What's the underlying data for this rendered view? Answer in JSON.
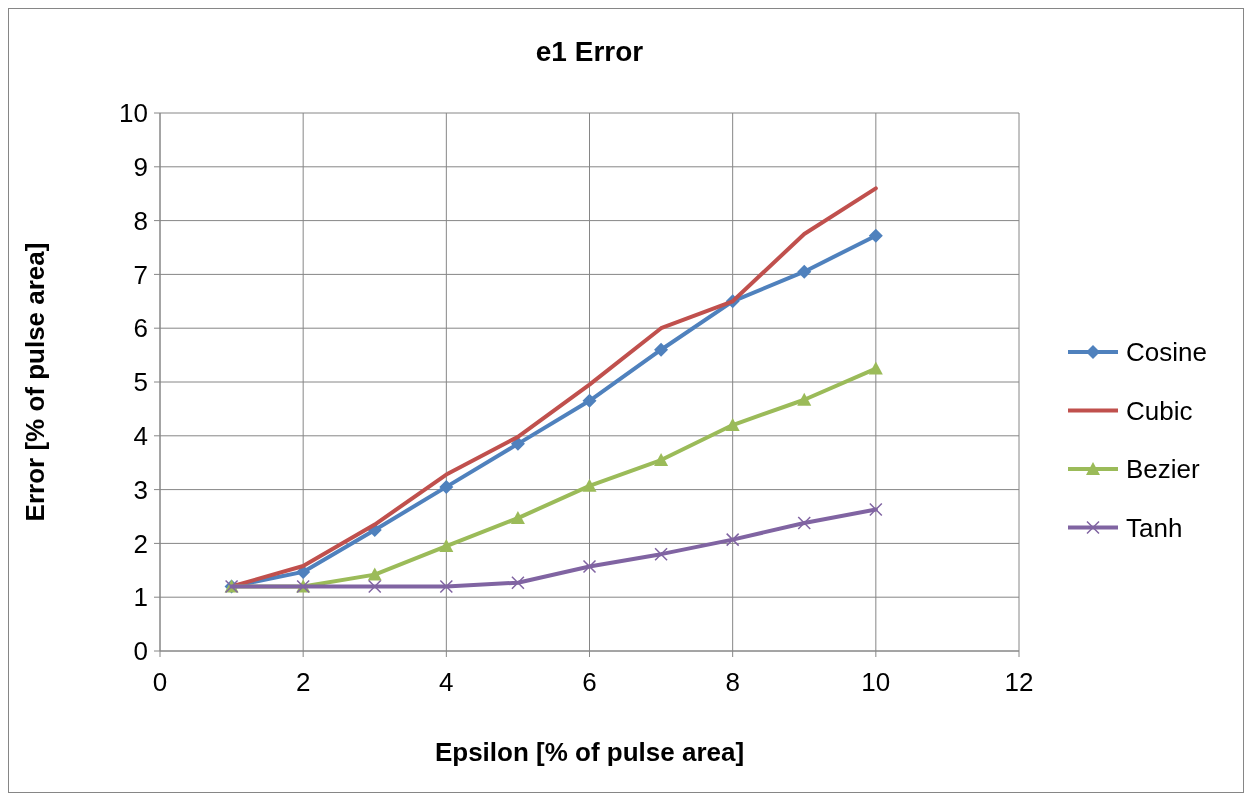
{
  "chart_data": {
    "type": "line",
    "title": "e1 Error",
    "xlabel": "Epsilon [% of pulse area]",
    "ylabel": "Error [% of pulse area]",
    "x": [
      1,
      2,
      3,
      4,
      5,
      6,
      7,
      8,
      9,
      10
    ],
    "xlim": [
      0,
      12
    ],
    "xticks": [
      0,
      2,
      4,
      6,
      8,
      10,
      12
    ],
    "ylim": [
      0,
      10
    ],
    "yticks": [
      0,
      1,
      2,
      3,
      4,
      5,
      6,
      7,
      8,
      9,
      10
    ],
    "grid": true,
    "legend": "right",
    "series": [
      {
        "name": "Cosine",
        "color": "#4f81bd",
        "marker": "diamond",
        "values": [
          1.2,
          1.47,
          2.25,
          3.05,
          3.85,
          4.65,
          5.6,
          6.5,
          7.05,
          7.72
        ]
      },
      {
        "name": "Cubic",
        "color": "#c0504d",
        "marker": "none",
        "values": [
          1.2,
          1.58,
          2.35,
          3.28,
          3.98,
          4.95,
          6.0,
          6.5,
          7.75,
          8.6
        ]
      },
      {
        "name": "Bezier",
        "color": "#9bbb59",
        "marker": "triangle",
        "values": [
          1.2,
          1.2,
          1.42,
          1.95,
          2.47,
          3.07,
          3.55,
          4.2,
          4.67,
          5.25
        ]
      },
      {
        "name": "Tanh",
        "color": "#8064a2",
        "marker": "cross",
        "values": [
          1.2,
          1.2,
          1.2,
          1.2,
          1.27,
          1.57,
          1.8,
          2.07,
          2.38,
          2.63
        ]
      }
    ]
  }
}
